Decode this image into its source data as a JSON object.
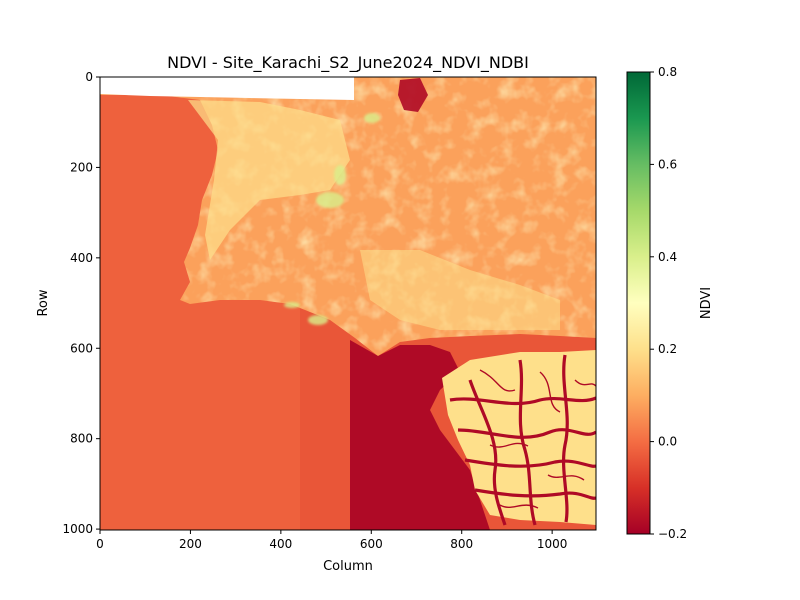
{
  "chart_data": {
    "type": "heatmap",
    "title": "NDVI - Site_Karachi_S2_June2024_NDVI_NDBI",
    "xlabel": "Column",
    "ylabel": "Row",
    "xlim": [
      0,
      1097
    ],
    "ylim": [
      1002,
      0
    ],
    "xticks": [
      "0",
      "200",
      "400",
      "600",
      "800",
      "1000"
    ],
    "xtick_values": [
      0,
      200,
      400,
      600,
      800,
      1000
    ],
    "yticks": [
      "0",
      "200",
      "400",
      "600",
      "800",
      "1000"
    ],
    "ytick_values": [
      0,
      200,
      400,
      600,
      800,
      1000
    ],
    "grid": false,
    "colormap": "RdYlGn",
    "colorbar": {
      "label": "NDVI",
      "min": -0.2,
      "max": 0.8,
      "ticks": [
        "0.8",
        "0.6",
        "0.4",
        "0.2",
        "0.0",
        "−0.2"
      ],
      "tick_values": [
        0.8,
        0.6,
        0.4,
        0.2,
        0.0,
        -0.2
      ],
      "colors": [
        "#a50026",
        "#d73027",
        "#f46d43",
        "#fdae61",
        "#fee08b",
        "#ffffbf",
        "#d9ef8b",
        "#a6d96a",
        "#66bd63",
        "#1a9850",
        "#006837"
      ]
    },
    "regions": {
      "sea_ndvi": -0.02,
      "land_ndvi": 0.08,
      "bright_land_ndvi": 0.2,
      "vegetation_ndvi": 0.4,
      "creek_water_ndvi": -0.18,
      "nodata_color": "#ffffff"
    }
  }
}
